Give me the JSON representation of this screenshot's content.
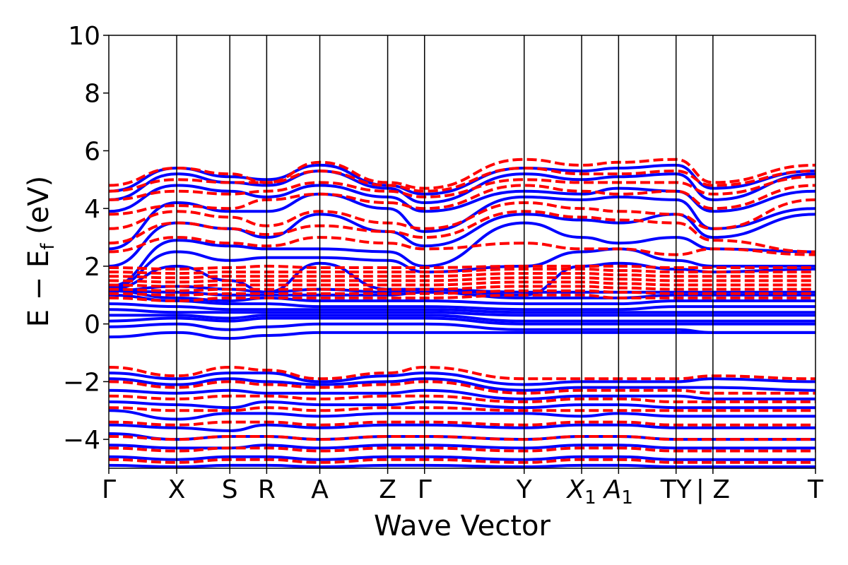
{
  "chart_data": {
    "type": "line",
    "title": "",
    "xlabel": "Wave Vector",
    "ylabel": {
      "main": "E − E",
      "sub": "f",
      "unit": " (eV)"
    },
    "ylim": [
      -5,
      10
    ],
    "yticks": [
      -4,
      -2,
      0,
      2,
      4,
      6,
      8,
      10
    ],
    "ytick_labels": [
      "−4",
      "−2",
      "0",
      "2",
      "4",
      "6",
      "8",
      "10"
    ],
    "high_symmetry_points": [
      {
        "label": "Γ",
        "x": 0.0
      },
      {
        "label": "X",
        "x": 0.0902
      },
      {
        "label": "S",
        "x": 0.1608
      },
      {
        "label": "R",
        "x": 0.2098
      },
      {
        "label": "A",
        "x": 0.2804
      },
      {
        "label": "Z",
        "x": 0.3706
      },
      {
        "label": "Γ",
        "x": 0.4196
      },
      {
        "label": "Y",
        "x": 0.552
      },
      {
        "label": "X",
        "sub": "1",
        "x": 0.6284,
        "italic": true
      },
      {
        "label": "A",
        "sub": "1",
        "x": 0.6775,
        "italic": true
      },
      {
        "label": "TY",
        "x": 0.7539
      },
      {
        "label": "| Z",
        "x": 0.8029
      },
      {
        "label": "T",
        "x": 0.9392
      }
    ],
    "x_range": [
      0.0,
      0.9392
    ],
    "grid": false,
    "legend": "none",
    "series": [
      {
        "style": "solid",
        "color": "#0000ff",
        "bands": [
          [
            -0.45,
            -0.3,
            -0.5,
            -0.4,
            -0.3,
            -0.3,
            -0.3,
            -0.3,
            -0.3,
            -0.3,
            -0.3,
            -0.3,
            -0.3
          ],
          [
            -0.1,
            0.0,
            -0.2,
            -0.1,
            0.0,
            0.0,
            0.0,
            -0.2,
            -0.2,
            -0.2,
            -0.2,
            -0.3,
            -0.3
          ],
          [
            0.1,
            0.2,
            0.1,
            0.2,
            0.2,
            0.2,
            0.2,
            0.0,
            0.0,
            0.0,
            0.0,
            0.0,
            0.0
          ],
          [
            0.3,
            0.3,
            0.2,
            0.3,
            0.3,
            0.3,
            0.3,
            0.1,
            0.1,
            0.1,
            0.1,
            0.1,
            0.1
          ],
          [
            0.5,
            0.4,
            0.4,
            0.4,
            0.4,
            0.4,
            0.4,
            0.3,
            0.3,
            0.3,
            0.3,
            0.3,
            0.3
          ],
          [
            0.7,
            0.6,
            0.5,
            0.5,
            0.5,
            0.5,
            0.5,
            0.4,
            0.4,
            0.4,
            0.4,
            0.4,
            0.4
          ],
          [
            1.0,
            0.8,
            0.7,
            0.7,
            0.6,
            0.6,
            0.6,
            0.5,
            0.5,
            0.5,
            0.6,
            0.6,
            0.6
          ],
          [
            1.15,
            0.9,
            0.8,
            0.9,
            0.8,
            0.8,
            0.8,
            0.7,
            0.7,
            0.7,
            0.8,
            0.8,
            0.8
          ],
          [
            1.15,
            1.1,
            1.0,
            1.0,
            1.0,
            1.0,
            1.1,
            0.9,
            0.9,
            0.9,
            1.0,
            1.0,
            1.0
          ],
          [
            1.15,
            1.3,
            1.2,
            1.1,
            1.2,
            1.1,
            1.2,
            1.1,
            1.1,
            1.1,
            1.1,
            1.1,
            1.1
          ],
          [
            1.2,
            2.0,
            1.5,
            1.1,
            2.1,
            1.2,
            1.2,
            1.0,
            2.0,
            2.1,
            1.9,
            1.8,
            1.9
          ],
          [
            1.25,
            2.5,
            2.2,
            2.3,
            2.3,
            2.2,
            1.8,
            2.0,
            2.5,
            2.6,
            2.2,
            2.0,
            2.0
          ],
          [
            1.3,
            2.9,
            2.7,
            2.6,
            2.6,
            2.5,
            2.0,
            3.5,
            3.0,
            2.8,
            3.0,
            2.6,
            2.5
          ],
          [
            2.0,
            3.5,
            3.3,
            3.0,
            3.8,
            3.2,
            2.7,
            3.8,
            3.6,
            3.5,
            3.8,
            3.0,
            3.8
          ],
          [
            2.6,
            4.2,
            3.9,
            3.9,
            4.5,
            4.0,
            3.2,
            4.4,
            4.3,
            4.4,
            4.3,
            3.3,
            4.0
          ],
          [
            3.9,
            4.8,
            4.6,
            4.4,
            4.8,
            4.4,
            3.9,
            4.6,
            4.5,
            4.7,
            4.6,
            3.9,
            4.6
          ],
          [
            4.3,
            5.2,
            4.9,
            4.8,
            5.3,
            4.7,
            4.2,
            5.2,
            5.0,
            5.1,
            5.2,
            4.3,
            5.2
          ],
          [
            4.6,
            5.4,
            5.1,
            5.0,
            5.5,
            4.8,
            4.5,
            5.4,
            5.3,
            5.4,
            5.5,
            4.7,
            5.3
          ],
          [
            -1.7,
            -1.9,
            -1.7,
            -1.7,
            -2.0,
            -1.8,
            -1.7,
            -2.1,
            -2.0,
            -2.0,
            -2.0,
            -1.9,
            -2.0
          ],
          [
            -1.9,
            -2.1,
            -1.9,
            -2.0,
            -2.1,
            -2.0,
            -1.9,
            -2.3,
            -2.2,
            -2.2,
            -2.2,
            -2.2,
            -2.3
          ],
          [
            -2.3,
            -2.4,
            -2.3,
            -2.4,
            -2.4,
            -2.4,
            -2.3,
            -2.6,
            -2.5,
            -2.5,
            -2.5,
            -2.6,
            -2.6
          ],
          [
            -2.7,
            -2.8,
            -2.9,
            -2.7,
            -2.8,
            -2.8,
            -2.7,
            -2.9,
            -2.8,
            -2.8,
            -2.9,
            -2.9,
            -2.9
          ],
          [
            -3.0,
            -3.3,
            -3.1,
            -3.1,
            -3.2,
            -3.1,
            -3.1,
            -3.1,
            -3.2,
            -3.1,
            -3.2,
            -3.2,
            -3.2
          ],
          [
            -3.5,
            -3.6,
            -3.7,
            -3.5,
            -3.6,
            -3.5,
            -3.5,
            -3.6,
            -3.5,
            -3.5,
            -3.6,
            -3.6,
            -3.6
          ],
          [
            -3.8,
            -4.0,
            -3.9,
            -3.9,
            -4.0,
            -3.9,
            -3.9,
            -4.0,
            -3.9,
            -3.9,
            -4.0,
            -4.0,
            -4.0
          ],
          [
            -4.2,
            -4.3,
            -4.3,
            -4.2,
            -4.3,
            -4.2,
            -4.2,
            -4.3,
            -4.2,
            -4.2,
            -4.3,
            -4.3,
            -4.3
          ],
          [
            -4.6,
            -4.7,
            -4.6,
            -4.6,
            -4.7,
            -4.6,
            -4.6,
            -4.7,
            -4.6,
            -4.6,
            -4.7,
            -4.7,
            -4.7
          ],
          [
            -4.9,
            -4.95,
            -4.9,
            -4.9,
            -4.95,
            -4.9,
            -4.9,
            -4.95,
            -4.9,
            -4.9,
            -4.95,
            -4.95,
            -4.95
          ]
        ]
      },
      {
        "style": "dashed",
        "color": "#ff0000",
        "bands": [
          [
            0.9,
            0.8,
            0.9,
            0.9,
            0.9,
            0.9,
            0.9,
            1.0,
            1.0,
            0.9,
            0.9,
            0.9,
            0.9
          ],
          [
            1.05,
            1.0,
            1.05,
            1.05,
            1.05,
            1.05,
            1.05,
            1.15,
            1.15,
            1.1,
            1.05,
            1.05,
            1.05
          ],
          [
            1.2,
            1.15,
            1.2,
            1.2,
            1.2,
            1.2,
            1.2,
            1.3,
            1.3,
            1.25,
            1.2,
            1.2,
            1.2
          ],
          [
            1.35,
            1.3,
            1.35,
            1.35,
            1.35,
            1.35,
            1.35,
            1.45,
            1.45,
            1.4,
            1.35,
            1.35,
            1.35
          ],
          [
            1.5,
            1.45,
            1.5,
            1.5,
            1.5,
            1.5,
            1.5,
            1.6,
            1.6,
            1.55,
            1.5,
            1.5,
            1.5
          ],
          [
            1.65,
            1.6,
            1.65,
            1.65,
            1.65,
            1.65,
            1.65,
            1.75,
            1.75,
            1.7,
            1.65,
            1.65,
            1.65
          ],
          [
            1.8,
            1.75,
            1.8,
            1.8,
            1.8,
            1.8,
            1.8,
            1.9,
            1.9,
            1.85,
            1.8,
            1.8,
            1.8
          ],
          [
            1.95,
            1.9,
            1.95,
            2.0,
            1.95,
            1.95,
            1.95,
            2.0,
            2.0,
            2.0,
            1.95,
            1.95,
            1.95
          ],
          [
            2.5,
            3.0,
            2.8,
            2.7,
            3.0,
            2.8,
            2.6,
            2.8,
            2.6,
            2.6,
            2.4,
            2.6,
            2.4
          ],
          [
            2.8,
            3.5,
            3.3,
            3.1,
            3.4,
            3.2,
            3.0,
            3.9,
            3.7,
            3.6,
            3.5,
            2.9,
            2.5
          ],
          [
            3.3,
            3.9,
            3.7,
            3.4,
            3.9,
            3.5,
            3.3,
            4.2,
            4.0,
            3.9,
            3.8,
            3.3,
            4.3
          ],
          [
            3.8,
            4.1,
            4.0,
            4.3,
            4.5,
            4.2,
            4.0,
            4.8,
            4.6,
            4.5,
            4.6,
            4.0,
            4.8
          ],
          [
            4.3,
            4.6,
            4.5,
            4.6,
            4.9,
            4.6,
            4.4,
            5.0,
            4.9,
            4.9,
            4.9,
            4.5,
            5.1
          ],
          [
            4.6,
            5.0,
            4.9,
            4.9,
            5.3,
            4.8,
            4.6,
            5.4,
            5.2,
            5.2,
            5.3,
            4.8,
            5.3
          ],
          [
            4.8,
            5.4,
            5.2,
            4.9,
            5.6,
            4.9,
            4.7,
            5.7,
            5.5,
            5.6,
            5.7,
            4.9,
            5.5
          ],
          [
            -1.5,
            -1.8,
            -1.5,
            -1.6,
            -1.9,
            -1.7,
            -1.5,
            -1.9,
            -1.9,
            -1.9,
            -1.9,
            -1.8,
            -1.9
          ],
          [
            -2.0,
            -2.2,
            -2.0,
            -2.1,
            -2.2,
            -2.1,
            -2.0,
            -2.4,
            -2.3,
            -2.3,
            -2.3,
            -2.4,
            -2.4
          ],
          [
            -2.5,
            -2.6,
            -2.5,
            -2.5,
            -2.6,
            -2.5,
            -2.5,
            -2.7,
            -2.6,
            -2.6,
            -2.7,
            -2.7,
            -2.7
          ],
          [
            -2.9,
            -3.0,
            -3.0,
            -2.9,
            -3.0,
            -2.9,
            -2.9,
            -3.0,
            -3.0,
            -3.0,
            -3.0,
            -3.0,
            -3.0
          ],
          [
            -3.4,
            -3.5,
            -3.4,
            -3.4,
            -3.5,
            -3.4,
            -3.4,
            -3.5,
            -3.4,
            -3.4,
            -3.5,
            -3.5,
            -3.5
          ],
          [
            -3.9,
            -4.0,
            -3.9,
            -3.9,
            -4.0,
            -3.9,
            -3.9,
            -4.0,
            -3.9,
            -3.9,
            -4.0,
            -4.0,
            -4.0
          ],
          [
            -4.3,
            -4.4,
            -4.3,
            -4.3,
            -4.4,
            -4.3,
            -4.3,
            -4.4,
            -4.3,
            -4.3,
            -4.4,
            -4.4,
            -4.4
          ],
          [
            -4.7,
            -4.8,
            -4.7,
            -4.7,
            -4.8,
            -4.7,
            -4.7,
            -4.8,
            -4.7,
            -4.7,
            -4.8,
            -4.8,
            -4.8
          ]
        ]
      }
    ]
  }
}
